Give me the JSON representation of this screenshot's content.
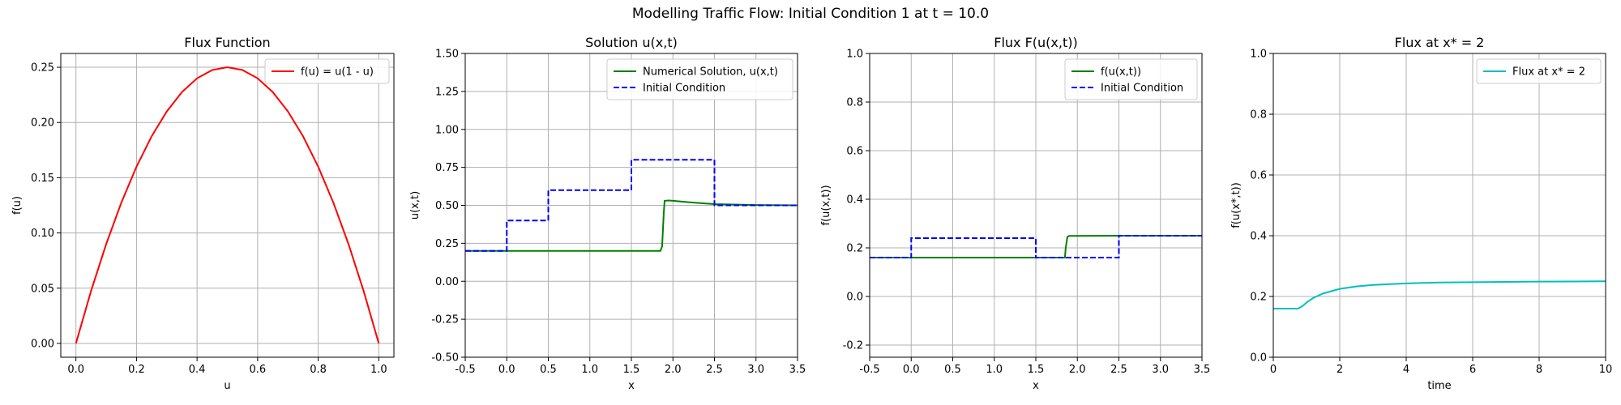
{
  "figure": {
    "suptitle": "Modelling Traffic Flow: Initial Condition 1 at t = 10.0"
  },
  "colors": {
    "red": "#ff0000",
    "green": "#008000",
    "blue": "#0000ff",
    "cyan": "#00bfbf",
    "grid": "#b0b0b0",
    "axes": "#000000"
  },
  "chart_data": [
    {
      "type": "line",
      "title": "Flux Function",
      "xlabel": "u",
      "ylabel": "f(u)",
      "xlim": [
        -0.05,
        1.05
      ],
      "ylim": [
        -0.0125,
        0.2625
      ],
      "xticks": [
        0,
        0.2,
        0.4,
        0.6,
        0.8,
        1.0
      ],
      "xtick_labels": [
        "0.0",
        "0.2",
        "0.4",
        "0.6",
        "0.8",
        "1.0"
      ],
      "yticks": [
        0,
        0.05,
        0.1,
        0.15,
        0.2,
        0.25
      ],
      "ytick_labels": [
        "0.00",
        "0.05",
        "0.10",
        "0.15",
        "0.20",
        "0.25"
      ],
      "grid": true,
      "legend_position": "top-right",
      "series": [
        {
          "name": "f(u) = u(1 - u)",
          "color": "#ff0000",
          "style": "solid",
          "x": [
            0,
            0.05,
            0.1,
            0.15,
            0.2,
            0.25,
            0.3,
            0.35,
            0.4,
            0.45,
            0.5,
            0.55,
            0.6,
            0.65,
            0.7,
            0.75,
            0.8,
            0.85,
            0.9,
            0.95,
            1.0
          ],
          "y": [
            0,
            0.0475,
            0.09,
            0.1275,
            0.16,
            0.1875,
            0.21,
            0.2275,
            0.24,
            0.2475,
            0.25,
            0.2475,
            0.24,
            0.2275,
            0.21,
            0.1875,
            0.16,
            0.1275,
            0.09,
            0.0475,
            0
          ]
        }
      ]
    },
    {
      "type": "line",
      "title": "Solution u(x,t)",
      "xlabel": "x",
      "ylabel": "u(x,t)",
      "xlim": [
        -0.5,
        3.5
      ],
      "ylim": [
        -0.5,
        1.5
      ],
      "xticks": [
        -0.5,
        0,
        0.5,
        1.0,
        1.5,
        2.0,
        2.5,
        3.0,
        3.5
      ],
      "xtick_labels": [
        "-0.5",
        "0.0",
        "0.5",
        "1.0",
        "1.5",
        "2.0",
        "2.5",
        "3.0",
        "3.5"
      ],
      "yticks": [
        -0.5,
        -0.25,
        0,
        0.25,
        0.5,
        0.75,
        1.0,
        1.25,
        1.5
      ],
      "ytick_labels": [
        "-0.50",
        "-0.25",
        "0.00",
        "0.25",
        "0.50",
        "0.75",
        "1.00",
        "1.25",
        "1.50"
      ],
      "grid": true,
      "legend_position": "top-right",
      "series": [
        {
          "name": "Numerical Solution, u(x,t)",
          "color": "#008000",
          "style": "solid",
          "x": [
            -0.5,
            1.85,
            1.87,
            1.89,
            1.9,
            1.95,
            2.0,
            2.2,
            2.5,
            3.0,
            3.5
          ],
          "y": [
            0.2,
            0.2,
            0.23,
            0.45,
            0.53,
            0.532,
            0.53,
            0.52,
            0.508,
            0.502,
            0.5
          ]
        },
        {
          "name": "Initial Condition",
          "color": "#0000ff",
          "style": "dashed",
          "x": [
            -0.5,
            0,
            0,
            0.5,
            0.5,
            1.5,
            1.5,
            2.5,
            2.5,
            3.5
          ],
          "y": [
            0.2,
            0.2,
            0.4,
            0.4,
            0.6,
            0.6,
            0.8,
            0.8,
            0.5,
            0.5
          ]
        }
      ]
    },
    {
      "type": "line",
      "title": "Flux F(u(x,t))",
      "xlabel": "x",
      "ylabel": "f(u(x,t))",
      "xlim": [
        -0.5,
        3.5
      ],
      "ylim": [
        -0.25,
        1.0
      ],
      "xticks": [
        -0.5,
        0,
        0.5,
        1.0,
        1.5,
        2.0,
        2.5,
        3.0,
        3.5
      ],
      "xtick_labels": [
        "-0.5",
        "0.0",
        "0.5",
        "1.0",
        "1.5",
        "2.0",
        "2.5",
        "3.0",
        "3.5"
      ],
      "yticks": [
        -0.2,
        0,
        0.2,
        0.4,
        0.6,
        0.8,
        1.0
      ],
      "ytick_labels": [
        "-0.2",
        "0.0",
        "0.2",
        "0.4",
        "0.6",
        "0.8",
        "1.0"
      ],
      "grid": true,
      "legend_position": "top-right",
      "series": [
        {
          "name": "f(u(x,t))",
          "color": "#008000",
          "style": "solid",
          "x": [
            -0.5,
            1.85,
            1.86,
            1.88,
            1.9,
            2.2,
            2.5,
            3.0,
            3.5
          ],
          "y": [
            0.16,
            0.16,
            0.2,
            0.245,
            0.249,
            0.2496,
            0.25,
            0.25,
            0.25
          ]
        },
        {
          "name": "Initial Condition",
          "color": "#0000ff",
          "style": "dashed",
          "x": [
            -0.5,
            0,
            0,
            0.5,
            0.5,
            1.5,
            1.5,
            2.5,
            2.5,
            3.5
          ],
          "y": [
            0.16,
            0.16,
            0.24,
            0.24,
            0.24,
            0.24,
            0.16,
            0.16,
            0.25,
            0.25
          ]
        }
      ]
    },
    {
      "type": "line",
      "title": "Flux at x* = 2",
      "xlabel": "time",
      "ylabel": "f(u(x*,t))",
      "xlim": [
        0,
        10
      ],
      "ylim": [
        0,
        1.0
      ],
      "xticks": [
        0,
        2,
        4,
        6,
        8,
        10
      ],
      "xtick_labels": [
        "0",
        "2",
        "4",
        "6",
        "8",
        "10"
      ],
      "yticks": [
        0,
        0.2,
        0.4,
        0.6,
        0.8,
        1.0
      ],
      "ytick_labels": [
        "0.0",
        "0.2",
        "0.4",
        "0.6",
        "0.8",
        "1.0"
      ],
      "grid": true,
      "legend_position": "top-right",
      "series": [
        {
          "name": "Flux at x* = 2",
          "color": "#00bfbf",
          "style": "solid",
          "x": [
            0,
            0.5,
            0.75,
            0.9,
            1.0,
            1.2,
            1.5,
            2.0,
            2.5,
            3.0,
            4.0,
            5.0,
            6.0,
            7.0,
            8.0,
            9.0,
            10.0
          ],
          "y": [
            0.16,
            0.16,
            0.16,
            0.17,
            0.18,
            0.195,
            0.21,
            0.225,
            0.233,
            0.238,
            0.243,
            0.246,
            0.247,
            0.248,
            0.249,
            0.2495,
            0.25
          ]
        }
      ]
    }
  ]
}
